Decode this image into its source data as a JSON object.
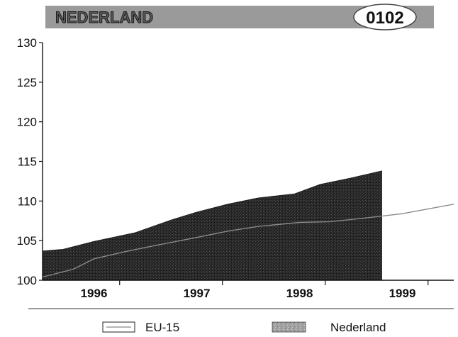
{
  "header": {
    "country": "NEDERLAND",
    "code": "0102"
  },
  "chart_data": {
    "type": "area",
    "x": [
      1995.5,
      1996.0,
      1996.5,
      1997.0,
      1997.5,
      1998.0,
      1998.5,
      1999.0,
      1999.5
    ],
    "xticks": [
      1996,
      1997,
      1998,
      1999
    ],
    "xtick_labels": [
      "1996",
      "1997",
      "1998",
      "1999"
    ],
    "ylim": [
      100,
      130
    ],
    "yticks": [
      100,
      105,
      110,
      115,
      120,
      125,
      130
    ],
    "ytick_labels": [
      "100",
      "105",
      "110",
      "115",
      "120",
      "125",
      "130"
    ],
    "series": [
      {
        "name": "Nederland",
        "style": "area",
        "x": [
          1995.5,
          1995.7,
          1996.0,
          1996.4,
          1996.75,
          1997.0,
          1997.3,
          1997.6,
          1997.95,
          1998.2,
          1998.5,
          1998.8
        ],
        "values": [
          103.7,
          103.9,
          104.9,
          106.0,
          107.6,
          108.6,
          109.6,
          110.4,
          110.9,
          112.1,
          112.9,
          113.8
        ]
      },
      {
        "name": "EU-15",
        "style": "line",
        "x": [
          1995.5,
          1995.8,
          1996.0,
          1996.3,
          1996.6,
          1997.0,
          1997.3,
          1997.6,
          1998.0,
          1998.3,
          1998.6,
          1999.0,
          1999.5
        ],
        "values": [
          100.4,
          101.4,
          102.7,
          103.6,
          104.4,
          105.4,
          106.2,
          106.8,
          107.3,
          107.4,
          107.8,
          108.4,
          109.6
        ]
      }
    ],
    "legend": [
      {
        "label": "EU-15",
        "style": "line"
      },
      {
        "label": "Nederland",
        "style": "area"
      }
    ],
    "legend_position": "bottom",
    "grid": false,
    "colors": {
      "area": "#2b2b2b",
      "line": "#8a8a8a"
    }
  }
}
